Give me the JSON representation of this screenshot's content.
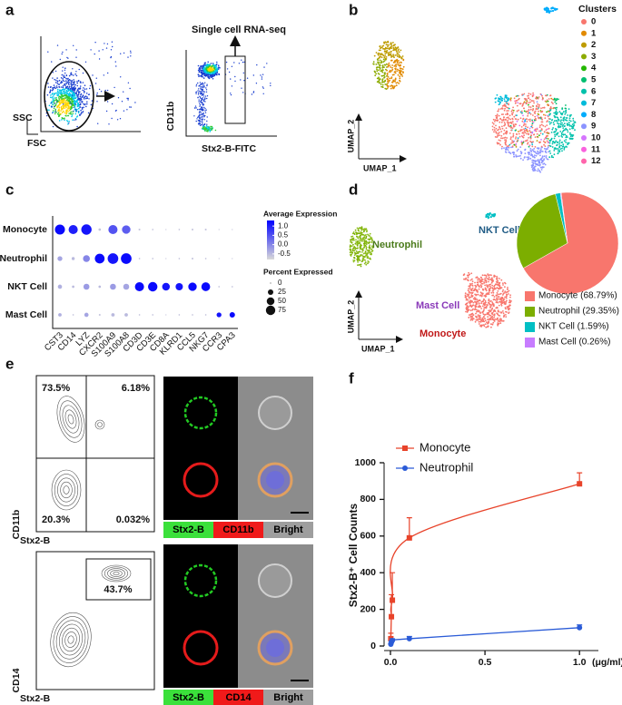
{
  "panel_labels": {
    "a": "a",
    "b": "b",
    "c": "c",
    "d": "d",
    "e": "e",
    "f": "f"
  },
  "a": {
    "gate_label": "Single cell RNA-seq",
    "fsc_ssc": {
      "x_label": "FSC",
      "y_label": "SSC"
    },
    "stx_cd11b": {
      "x_label": "Stx2-B-FITC",
      "y_label": "CD11b"
    }
  },
  "b": {
    "legend_title": "Clusters",
    "clusters": [
      "0",
      "1",
      "2",
      "3",
      "4",
      "5",
      "6",
      "7",
      "8",
      "9",
      "10",
      "11",
      "12"
    ],
    "colors": [
      "#F8766D",
      "#E18A00",
      "#BE9C00",
      "#8CAB00",
      "#24B700",
      "#00BE70",
      "#00C1AB",
      "#00BBDA",
      "#00ACFC",
      "#8B93FF",
      "#D575FE",
      "#F962DD",
      "#FF65AC"
    ],
    "x_label": "UMAP_1",
    "y_label": "UMAP_2"
  },
  "d": {
    "cell_labels": [
      {
        "text": "NKT Cell",
        "color": "#1f5b85"
      },
      {
        "text": "Neutrophil",
        "color": "#4a7a1a"
      },
      {
        "text": "Mast Cell",
        "color": "#8a3ab9"
      },
      {
        "text": "Monocyte",
        "color": "#c01818"
      }
    ],
    "x_label": "UMAP_1",
    "y_label": "UMAP_2"
  },
  "e": {
    "contour_1": {
      "quadrants": [
        "73.5%",
        "6.18%",
        "20.3%",
        "0.032%"
      ],
      "x_label": "Stx2-B",
      "y_label": "CD11b"
    },
    "contour_2": {
      "gate": "43.7%",
      "x_label": "Stx2-B",
      "y_label": "CD14"
    },
    "image_1_labels": [
      "Stx2-B",
      "CD11b",
      "Bright"
    ],
    "image_2_labels": [
      "Stx2-B",
      "CD14",
      "Bright"
    ]
  },
  "chart_data": [
    {
      "type": "dot",
      "categories": [
        "CST3",
        "CD14",
        "LYZ",
        "CXCR2",
        "S100A9",
        "S100A8",
        "CD3D",
        "CD3E",
        "CD8A",
        "KLRD1",
        "CCL5",
        "NKG7",
        "CCR3",
        "CPA3"
      ],
      "series": [
        {
          "name": "Monocyte",
          "values": [
            1.2,
            1.0,
            1.1,
            -0.6,
            0.5,
            0.4,
            -0.6,
            -0.6,
            -0.6,
            -0.6,
            -0.6,
            -0.6,
            -0.6,
            -0.6
          ],
          "percent": [
            85,
            70,
            90,
            5,
            70,
            60,
            3,
            2,
            1,
            2,
            3,
            3,
            1,
            1
          ]
        },
        {
          "name": "Neutrophil",
          "values": [
            -0.3,
            -0.5,
            0.0,
            1.2,
            1.1,
            1.2,
            -0.6,
            -0.6,
            -0.6,
            -0.6,
            -0.6,
            -0.6,
            -0.6,
            -0.6
          ],
          "percent": [
            20,
            8,
            40,
            80,
            95,
            95,
            2,
            2,
            1,
            2,
            3,
            2,
            1,
            1
          ]
        },
        {
          "name": "NKT Cell",
          "values": [
            -0.4,
            -0.5,
            -0.2,
            -0.5,
            -0.2,
            -0.3,
            1.2,
            1.2,
            1.1,
            1.1,
            1.2,
            1.2,
            -0.6,
            -0.6
          ],
          "percent": [
            15,
            5,
            30,
            5,
            30,
            30,
            70,
            75,
            50,
            45,
            60,
            65,
            2,
            2
          ]
        },
        {
          "name": "Mast Cell",
          "values": [
            -0.4,
            -0.6,
            -0.3,
            -0.6,
            -0.5,
            -0.5,
            -0.6,
            -0.6,
            -0.6,
            -0.6,
            -0.6,
            -0.6,
            1.1,
            1.2
          ],
          "percent": [
            10,
            2,
            15,
            3,
            10,
            10,
            2,
            2,
            1,
            2,
            2,
            2,
            20,
            25
          ]
        }
      ],
      "clim": [
        -0.8,
        1.3
      ],
      "color_low": "#d9d9d9",
      "color_high": "#0000ff",
      "color_legend": {
        "title": "Average Expression",
        "ticks": [
          {
            "value": 1,
            "label": "1.0"
          },
          0.5,
          {
            "value": 0,
            "label": "0.0"
          },
          -0.5
        ]
      },
      "size_legend": {
        "title": "Percent Expressed",
        "ticks": [
          0,
          25,
          50,
          75
        ]
      }
    },
    {
      "type": "pie",
      "categories": [
        "Monocyte",
        "Neutrophil",
        "NKT Cell",
        "Mast Cell"
      ],
      "values": [
        68.79,
        29.35,
        1.59,
        0.26
      ],
      "value_labels": [
        "Monocyte (68.79%)",
        "Neutrophil (29.35%)",
        "NKT Cell (1.59%)",
        "Mast Cell (0.26%)"
      ],
      "colors": [
        "#F8766D",
        "#7CAE00",
        "#00BFC4",
        "#C77CFF"
      ]
    },
    {
      "type": "line",
      "ylabel": "Stx2-B⁺ Cell Counts",
      "xlabel": "(μg/ml)",
      "xlim": [
        0,
        1.1
      ],
      "xticks": [
        {
          "value": 0,
          "label": "0.0"
        },
        0.5,
        {
          "value": 1,
          "label": "1.0"
        }
      ],
      "ylim": [
        0,
        1000
      ],
      "yticks": [
        0,
        200,
        400,
        600,
        800,
        1000
      ],
      "legend": "upper left",
      "series": [
        {
          "name": "Monocyte",
          "color": "#e8432a",
          "marker": "square",
          "x": [
            0.002,
            0.005,
            0.01,
            0.1,
            1.0
          ],
          "values": [
            40,
            160,
            250,
            590,
            885
          ],
          "errors": [
            30,
            120,
            150,
            110,
            60
          ]
        },
        {
          "name": "Neutrophil",
          "color": "#2a5bd7",
          "marker": "circle",
          "x": [
            0.002,
            0.005,
            0.01,
            0.1,
            1.0
          ],
          "values": [
            10,
            20,
            30,
            40,
            100
          ],
          "errors": [
            5,
            8,
            10,
            12,
            15
          ]
        }
      ]
    }
  ]
}
